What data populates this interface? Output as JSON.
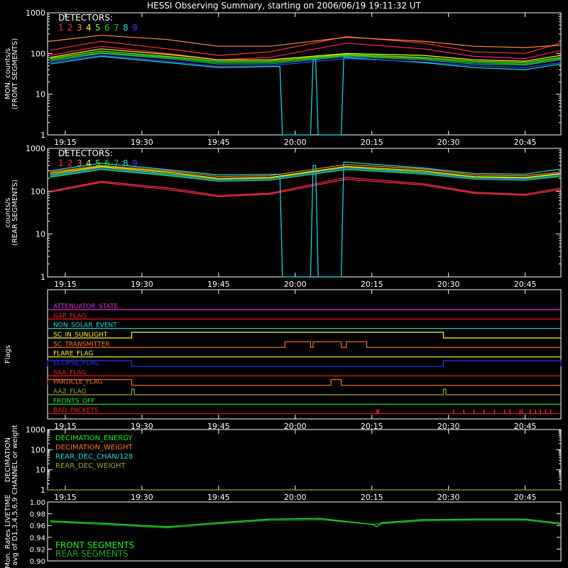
{
  "title": "HESSI Observing Summary, starting on 2006/06/19 19:11:32 UT",
  "colors": {
    "d1": "#ff3333",
    "d2": "#ff2266",
    "d3": "#ff8833",
    "d4": "#ffff00",
    "d5": "#77ee22",
    "d6": "#22dd22",
    "d7": "#11bb66",
    "d8": "#22dddd",
    "d9": "#3344ff",
    "axis": "#ffffff",
    "olive": "#99aa33",
    "magenta": "#dd33dd",
    "orange": "#ff7722",
    "blue": "#2233ff",
    "red": "#ff2222",
    "green": "#22ee22",
    "darkgreen": "#22aa22",
    "cyan": "#22dddd",
    "yellow": "#ffff33"
  },
  "chart_data": [
    {
      "id": "front",
      "type": "line",
      "ylabel": [
        "MON. counts/s",
        "(FRONT SEGMENTS)"
      ],
      "yscale": "log",
      "ylim": [
        1,
        1000
      ],
      "ytick_labels": [
        "1",
        "10",
        "100",
        "1000"
      ],
      "xlim": [
        "19:11:32",
        "20:52"
      ],
      "xtick_labels": [
        "19:15",
        "19:30",
        "19:45",
        "20:00",
        "20:15",
        "20:30",
        "20:45"
      ],
      "legend_title": "DETECTORS:",
      "legend": [
        "1",
        "2",
        "3",
        "4",
        "5",
        "6",
        "7",
        "8",
        "9"
      ],
      "series": [
        {
          "name": "1",
          "color": "d1",
          "x": [
            "19:12",
            "19:22",
            "19:35",
            "19:45",
            "19:55",
            "20:10",
            "20:25",
            "20:35",
            "20:45",
            "20:52"
          ],
          "y": [
            120,
            200,
            130,
            90,
            110,
            260,
            180,
            110,
            100,
            180
          ]
        },
        {
          "name": "2",
          "color": "d2",
          "x": [
            "19:12",
            "19:22",
            "19:35",
            "19:45",
            "19:55",
            "20:10",
            "20:25",
            "20:35",
            "20:45",
            "20:52"
          ],
          "y": [
            90,
            150,
            100,
            70,
            80,
            180,
            130,
            85,
            75,
            120
          ]
        },
        {
          "name": "3",
          "color": "d3",
          "x": [
            "19:12",
            "19:22",
            "19:35",
            "19:45",
            "19:55",
            "20:10",
            "20:25",
            "20:35",
            "20:45",
            "20:52"
          ],
          "y": [
            200,
            280,
            220,
            150,
            150,
            250,
            200,
            150,
            140,
            160
          ]
        },
        {
          "name": "4",
          "color": "d4",
          "x": [
            "19:12",
            "19:22",
            "19:35",
            "19:45",
            "19:55",
            "20:10",
            "20:25",
            "20:35",
            "20:45",
            "20:52"
          ],
          "y": [
            80,
            130,
            95,
            70,
            70,
            100,
            90,
            70,
            65,
            90
          ]
        },
        {
          "name": "5",
          "color": "d5",
          "x": [
            "19:12",
            "19:22",
            "19:35",
            "19:45",
            "19:55",
            "20:10",
            "20:25",
            "20:35",
            "20:45",
            "20:52"
          ],
          "y": [
            75,
            115,
            85,
            65,
            65,
            95,
            80,
            65,
            60,
            80
          ]
        },
        {
          "name": "6",
          "color": "d6",
          "x": [
            "19:12",
            "19:22",
            "19:35",
            "19:45",
            "19:55",
            "20:10",
            "20:25",
            "20:35",
            "20:45",
            "20:52"
          ],
          "y": [
            70,
            105,
            80,
            60,
            60,
            90,
            75,
            60,
            55,
            75
          ]
        },
        {
          "name": "7",
          "color": "d7",
          "x": [
            "19:12",
            "19:22",
            "19:35",
            "19:45",
            "19:55",
            "20:10",
            "20:25",
            "20:35",
            "20:45",
            "20:52"
          ],
          "y": [
            65,
            100,
            75,
            55,
            55,
            85,
            70,
            55,
            52,
            70
          ]
        },
        {
          "name": "8",
          "color": "d8",
          "x": [
            "19:12",
            "19:22",
            "19:35",
            "19:45",
            "19:57",
            "19:57.5",
            "20:03",
            "20:03.5",
            "20:04",
            "20:04.5",
            "20:09",
            "20:09.5",
            "20:25",
            "20:35",
            "20:45",
            "20:52"
          ],
          "y": [
            55,
            85,
            60,
            45,
            48,
            1,
            1,
            70,
            70,
            1,
            1,
            80,
            60,
            45,
            40,
            55
          ]
        },
        {
          "name": "9",
          "color": "d9",
          "x": [
            "19:12",
            "19:22",
            "19:35",
            "19:45",
            "19:55",
            "20:10",
            "20:25",
            "20:35",
            "20:45",
            "20:52"
          ],
          "y": [
            60,
            90,
            65,
            48,
            50,
            75,
            62,
            50,
            45,
            60
          ]
        }
      ]
    },
    {
      "id": "rear",
      "type": "line",
      "ylabel": [
        "counts/s",
        "(REAR SEGMENTS)"
      ],
      "yscale": "log",
      "ylim": [
        1,
        1000
      ],
      "ytick_labels": [
        "1",
        "10",
        "100",
        "1000"
      ],
      "xlim": [
        "19:11:32",
        "20:52"
      ],
      "xtick_labels": [
        "19:15",
        "19:30",
        "19:45",
        "20:00",
        "20:15",
        "20:30",
        "20:45"
      ],
      "legend_title": "DETECTORS:",
      "legend": [
        "1",
        "2",
        "3",
        "4",
        "5",
        "6",
        "7",
        "8",
        "9"
      ],
      "series": [
        {
          "name": "1",
          "color": "d1",
          "x": [
            "19:12",
            "19:22",
            "19:35",
            "19:45",
            "19:55",
            "20:10",
            "20:25",
            "20:35",
            "20:45",
            "20:52"
          ],
          "y": [
            95,
            160,
            110,
            75,
            85,
            190,
            140,
            90,
            80,
            110
          ]
        },
        {
          "name": "2",
          "color": "d2",
          "x": [
            "19:12",
            "19:22",
            "19:35",
            "19:45",
            "19:55",
            "20:10",
            "20:25",
            "20:35",
            "20:45",
            "20:52"
          ],
          "y": [
            100,
            170,
            120,
            80,
            90,
            210,
            150,
            95,
            85,
            120
          ]
        },
        {
          "name": "3",
          "color": "d3",
          "x": [
            "19:12",
            "19:22",
            "19:35",
            "19:45",
            "19:55",
            "20:10",
            "20:25",
            "20:35",
            "20:45",
            "20:52"
          ],
          "y": [
            280,
            400,
            300,
            220,
            230,
            420,
            330,
            240,
            230,
            280
          ]
        },
        {
          "name": "4",
          "color": "d4",
          "x": [
            "19:12",
            "19:22",
            "19:35",
            "19:45",
            "19:55",
            "20:10",
            "20:25",
            "20:35",
            "20:45",
            "20:52"
          ],
          "y": [
            260,
            380,
            280,
            200,
            210,
            380,
            300,
            220,
            210,
            260
          ]
        },
        {
          "name": "5",
          "color": "d5",
          "x": [
            "19:12",
            "19:22",
            "19:35",
            "19:45",
            "19:55",
            "20:10",
            "20:25",
            "20:35",
            "20:45",
            "20:52"
          ],
          "y": [
            240,
            360,
            260,
            190,
            200,
            360,
            280,
            210,
            200,
            250
          ]
        },
        {
          "name": "6",
          "color": "d6",
          "x": [
            "19:12",
            "19:22",
            "19:35",
            "19:45",
            "19:55",
            "20:10",
            "20:25",
            "20:35",
            "20:45",
            "20:52"
          ],
          "y": [
            220,
            330,
            240,
            175,
            185,
            330,
            260,
            195,
            185,
            230
          ]
        },
        {
          "name": "7",
          "color": "d7",
          "x": [
            "19:12",
            "19:22",
            "19:35",
            "19:45",
            "19:55",
            "20:10",
            "20:25",
            "20:35",
            "20:45",
            "20:52"
          ],
          "y": [
            210,
            320,
            230,
            170,
            180,
            320,
            250,
            190,
            180,
            220
          ]
        },
        {
          "name": "8",
          "color": "d8",
          "x": [
            "19:12",
            "19:22",
            "19:35",
            "19:45",
            "19:57",
            "19:57.5",
            "20:03",
            "20:03.5",
            "20:04",
            "20:04.5",
            "20:09",
            "20:09.5",
            "20:25",
            "20:35",
            "20:45",
            "20:52"
          ],
          "y": [
            300,
            450,
            320,
            240,
            250,
            1,
            1,
            400,
            400,
            1,
            1,
            480,
            350,
            260,
            250,
            330
          ]
        },
        {
          "name": "9",
          "color": "d9",
          "x": [
            "19:12",
            "19:22",
            "19:35",
            "19:45",
            "19:55",
            "20:10",
            "20:25",
            "20:35",
            "20:45",
            "20:52"
          ],
          "y": [
            230,
            340,
            250,
            180,
            190,
            340,
            270,
            200,
            190,
            240
          ]
        }
      ]
    },
    {
      "id": "flags",
      "type": "line",
      "ylabel": [
        "Flags"
      ],
      "xlim": [
        "19:11:32",
        "20:52"
      ],
      "xtick_labels": [
        "19:15",
        "19:30",
        "19:45",
        "20:00",
        "20:15",
        "20:30",
        "20:45"
      ],
      "flags": [
        {
          "label": "ATTENUATOR_STATE",
          "color": "magenta",
          "base": 0,
          "high": []
        },
        {
          "label": "GAP_FLAG",
          "color": "red",
          "base": 0,
          "high": []
        },
        {
          "label": "NON_SOLAR_EVENT",
          "color": "cyan",
          "base": 0,
          "high": []
        },
        {
          "label": "SC_IN_SUNLIGHT",
          "color": "yellow",
          "base": 0,
          "high": [
            [
              "19:28",
              "20:29"
            ]
          ]
        },
        {
          "label": "SC_TRANSMITTER",
          "color": "orange",
          "base": 0,
          "high": [
            [
              "19:58",
              "20:03"
            ],
            [
              "20:03.5",
              "20:09"
            ],
            [
              "20:10",
              "20:14"
            ]
          ]
        },
        {
          "label": "FLARE_FLAG",
          "color": "yellow",
          "base": 0,
          "high": []
        },
        {
          "label": "ECLIPSE_FLAG",
          "color": "blue",
          "base": 1,
          "high": [
            [
              "19:11:32",
              "19:28"
            ],
            [
              "20:29",
              "20:52"
            ]
          ]
        },
        {
          "label": "SAA_FLAG",
          "color": "red",
          "base": 0,
          "high": []
        },
        {
          "label": "PARTICLE_FLAG",
          "color": "orange",
          "base": 0,
          "high": [
            [
              "19:11:32",
              "19:28"
            ],
            [
              "20:07",
              "20:09"
            ]
          ]
        },
        {
          "label": "AAZ_FLAG",
          "color": "olive",
          "base": 0,
          "high": [
            [
              "19:28",
              "19:28.5"
            ],
            [
              "20:29",
              "20:29.5"
            ]
          ]
        },
        {
          "label": "FRONTS_OFF",
          "color": "green",
          "base": 0,
          "high": []
        },
        {
          "label": "BAD_PACKETS",
          "color": "red",
          "base": 0,
          "spikes": [
            "20:16",
            "20:16.3",
            "20:31",
            "20:33",
            "20:35",
            "20:37",
            "20:39",
            "20:41",
            "20:42",
            "20:44",
            "20:44.4",
            "20:46",
            "20:47",
            "20:48",
            "20:49",
            "20:50"
          ]
        }
      ]
    },
    {
      "id": "decimation",
      "type": "line",
      "ylabel": [
        "DECIMATION",
        "CHANNEL or weight"
      ],
      "yscale": "log",
      "ylim": [
        1,
        1000
      ],
      "ytick_labels": [
        "1",
        "10",
        "100",
        "1000"
      ],
      "xlim": [
        "19:11:32",
        "20:52"
      ],
      "xtick_labels": [
        "19:15",
        "19:30",
        "19:45",
        "20:00",
        "20:15",
        "20:30",
        "20:45"
      ],
      "legend": [
        {
          "label": "DECIMATION_ENERGY",
          "color": "green"
        },
        {
          "label": "DECIMATION_WEIGHT",
          "color": "orange"
        },
        {
          "label": "REAR_DEC_CHAN/128",
          "color": "cyan"
        },
        {
          "label": "REAR_DEC_WEIGHT",
          "color": "olive"
        }
      ],
      "series": [
        {
          "name": "REAR_DEC_WEIGHT",
          "color": "olive",
          "x": [
            "19:11:32",
            "20:52"
          ],
          "y": [
            1,
            1
          ]
        }
      ]
    },
    {
      "id": "livetime",
      "type": "line",
      "ylabel": [
        "Mon. Rates LIVETIME",
        "avg of D1,3,4,5,6,9"
      ],
      "ylim": [
        0.9,
        1.0
      ],
      "ytick_labels": [
        "0.90",
        "0.92",
        "0.94",
        "0.96",
        "0.98",
        "1.00"
      ],
      "xlim": [
        "19:11:32",
        "20:52"
      ],
      "legend": [
        {
          "label": "FRONT SEGMENTS",
          "color": "green"
        },
        {
          "label": "REAR SEGMENTS",
          "color": "darkgreen"
        }
      ],
      "series": [
        {
          "name": "FRONT SEGMENTS",
          "color": "green",
          "x": [
            "19:12",
            "19:22",
            "19:35",
            "19:45",
            "19:55",
            "20:05",
            "20:15",
            "20:16",
            "20:17",
            "20:25",
            "20:35",
            "20:45",
            "20:52"
          ],
          "y": [
            0.968,
            0.964,
            0.958,
            0.965,
            0.971,
            0.972,
            0.962,
            0.958,
            0.965,
            0.97,
            0.971,
            0.971,
            0.964
          ]
        },
        {
          "name": "REAR SEGMENTS",
          "color": "darkgreen",
          "x": [
            "19:12",
            "19:22",
            "19:35",
            "19:45",
            "19:55",
            "20:05",
            "20:15",
            "20:25",
            "20:35",
            "20:45",
            "20:52"
          ],
          "y": [
            0.966,
            0.962,
            0.956,
            0.963,
            0.969,
            0.97,
            0.962,
            0.968,
            0.969,
            0.969,
            0.962
          ]
        }
      ]
    }
  ]
}
